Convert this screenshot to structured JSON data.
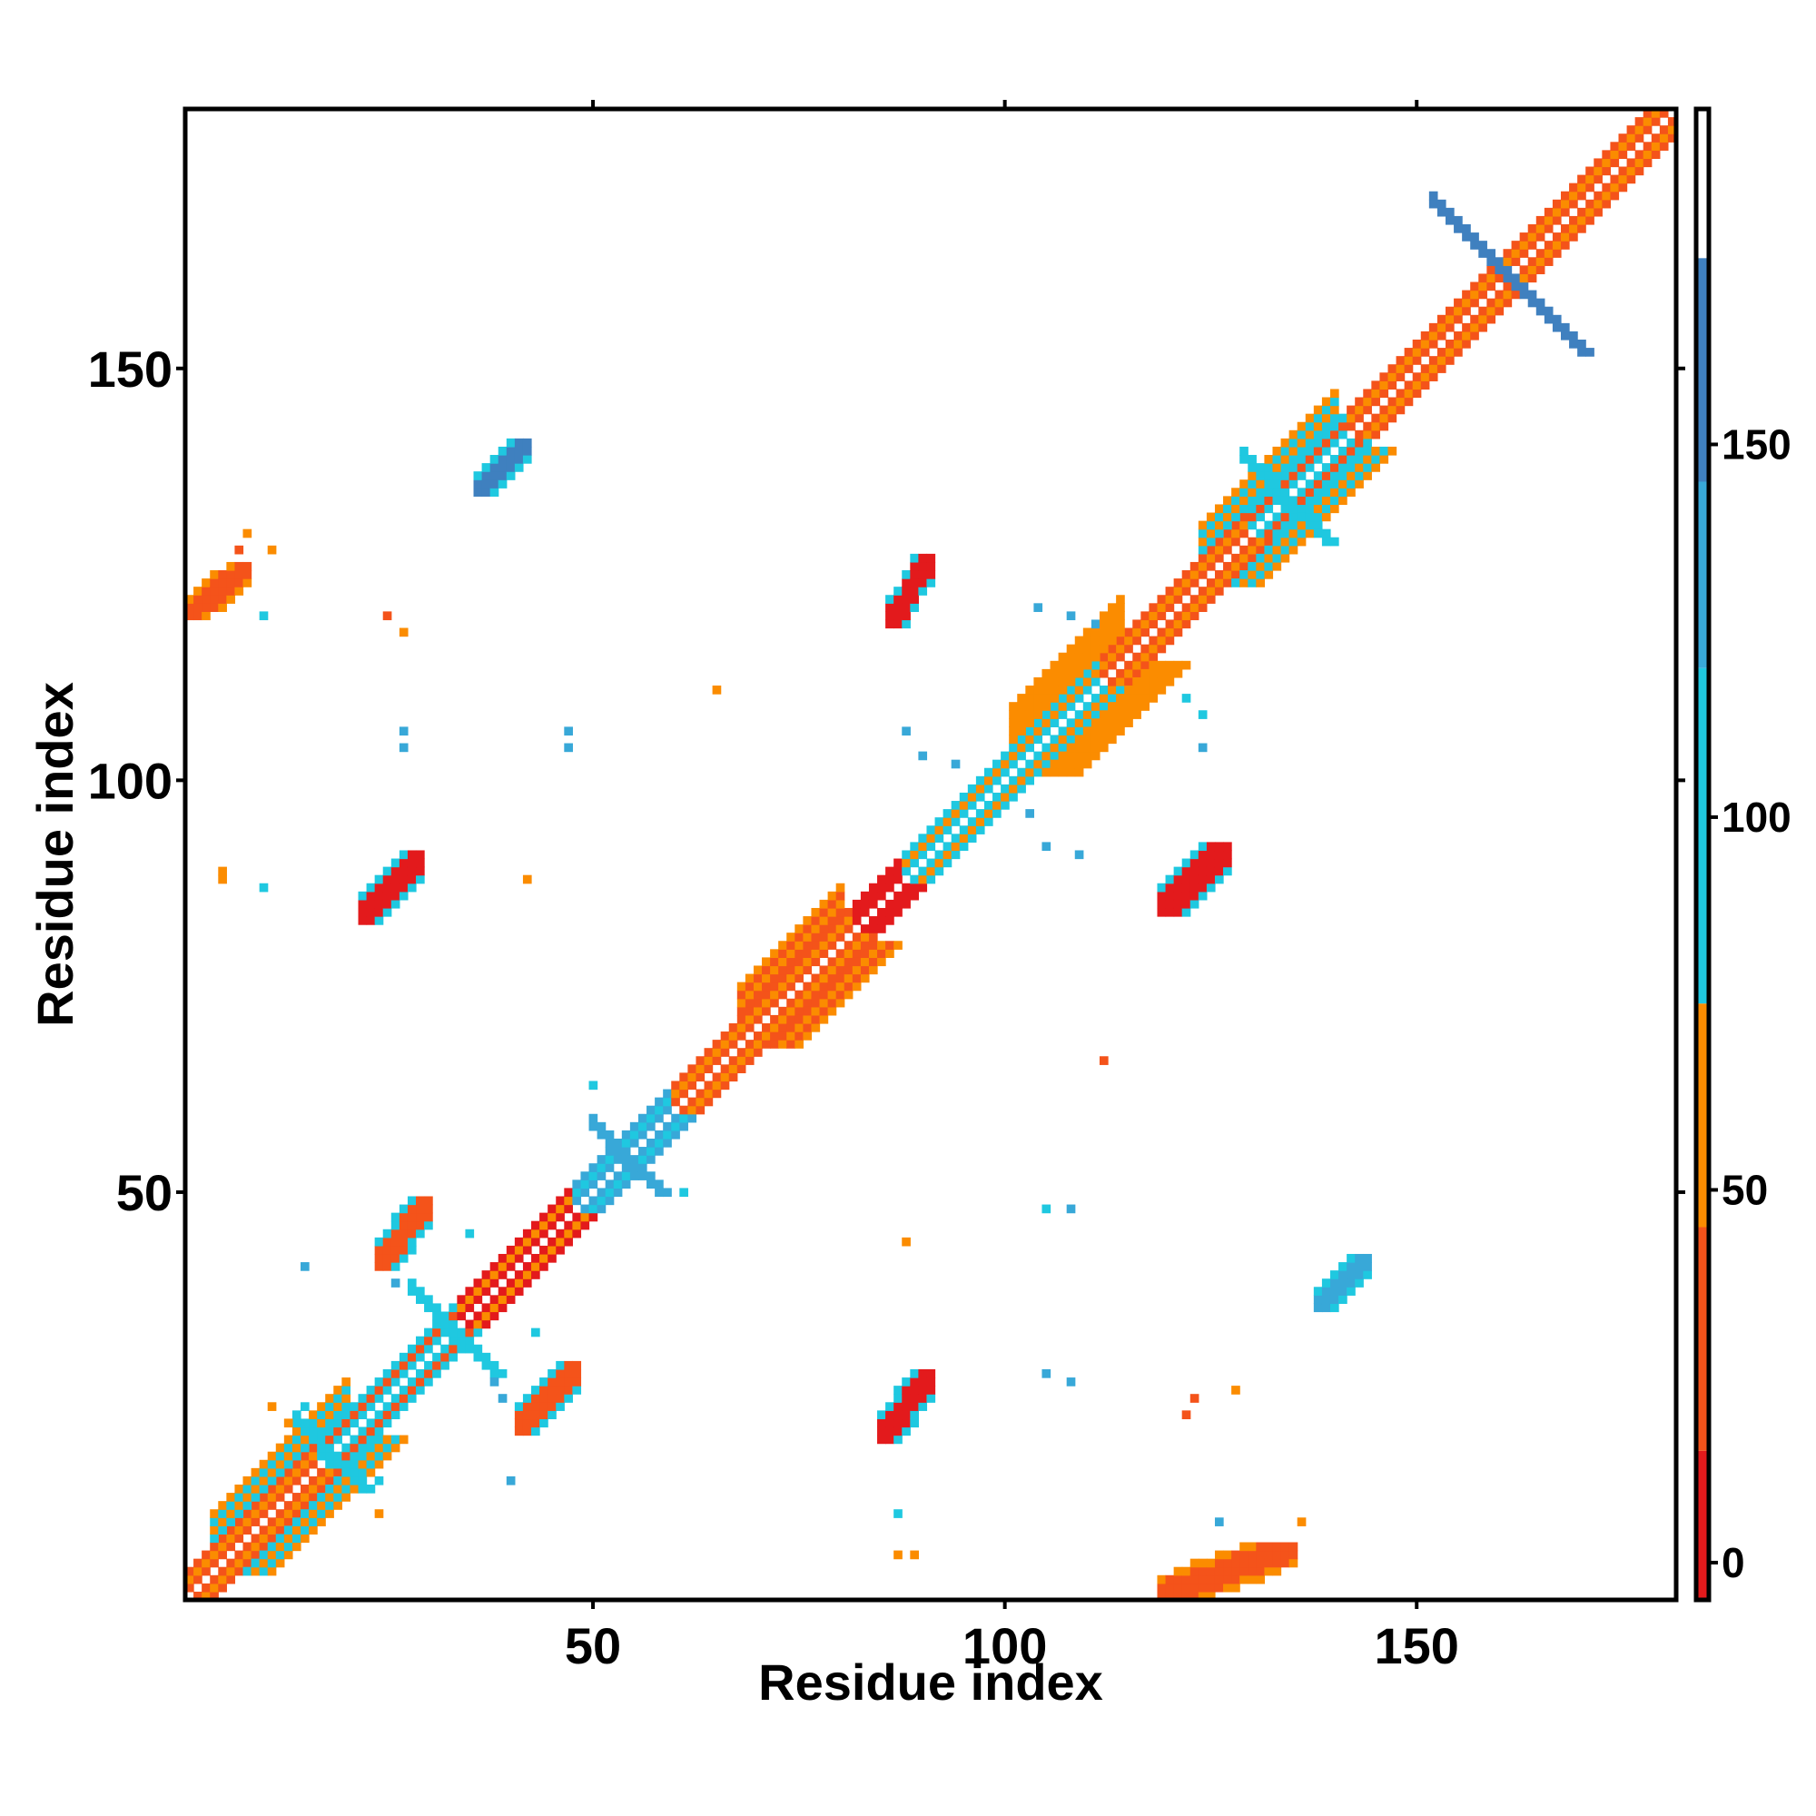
{
  "chart_data": {
    "type": "heatmap",
    "title": "",
    "xlabel": "Residue index",
    "ylabel": "Residue index",
    "xlim": [
      1,
      181
    ],
    "ylim": [
      1,
      181
    ],
    "x_ticks": [
      50,
      100,
      150
    ],
    "y_ticks": [
      50,
      100,
      150
    ],
    "x_tick_labels": [
      "50",
      "100",
      "150"
    ],
    "y_tick_labels": [
      "50",
      "100",
      "150"
    ],
    "grid": false,
    "colorbar": {
      "range": [
        -5,
        195
      ],
      "ticks": [
        0,
        50,
        100,
        150
      ],
      "tick_labels": [
        "0",
        "50",
        "100",
        "150"
      ],
      "bands": [
        {
          "from": -5,
          "to": 15,
          "color": "#e31a1c"
        },
        {
          "from": 15,
          "to": 45,
          "color": "#f4531a"
        },
        {
          "from": 45,
          "to": 75,
          "color": "#fb8c00"
        },
        {
          "from": 75,
          "to": 120,
          "color": "#1fc8e0"
        },
        {
          "from": 120,
          "to": 145,
          "color": "#38a8d8"
        },
        {
          "from": 145,
          "to": 175,
          "color": "#3f80bf"
        },
        {
          "from": 175,
          "to": 195,
          "color": "#ffffff"
        }
      ]
    },
    "features": {
      "diagonal_bands": [
        {
          "from": 1,
          "to": 17,
          "side": "#f4531a",
          "inner": "#fb8c00"
        },
        {
          "from": 17,
          "to": 34,
          "side": "#1fc8e0",
          "inner": "#f4531a"
        },
        {
          "from": 34,
          "to": 48,
          "side": "#e31a1c",
          "inner": "#fb8c00"
        },
        {
          "from": 48,
          "to": 60,
          "side": "#38a8d8",
          "inner": "#1fc8e0"
        },
        {
          "from": 60,
          "to": 82,
          "side": "#f4531a",
          "inner": "#fb8c00"
        },
        {
          "from": 82,
          "to": 88,
          "side": "#e31a1c",
          "inner": "#e31a1c"
        },
        {
          "from": 88,
          "to": 112,
          "side": "#1fc8e0",
          "inner": "#fb8c00"
        },
        {
          "from": 112,
          "to": 130,
          "side": "#f4531a",
          "inner": "#fb8c00"
        },
        {
          "from": 130,
          "to": 142,
          "side": "#1fc8e0",
          "inner": "#f4531a"
        },
        {
          "from": 142,
          "to": 181,
          "side": "#f4531a",
          "inner": "#fb8c00"
        }
      ],
      "diagonal_thick_segments": [
        {
          "from": 4,
          "to": 20,
          "width": 4,
          "color": "#1fc8e0"
        },
        {
          "from": 68,
          "to": 80,
          "width": 4,
          "color": "#f4531a"
        },
        {
          "from": 101,
          "to": 114,
          "width": 5,
          "color": "#fb8c00"
        },
        {
          "from": 124,
          "to": 140,
          "width": 4,
          "color": "#1fc8e0"
        }
      ],
      "cross_patterns": [
        {
          "center": [
            161,
            161
          ],
          "half_length": 9,
          "width": 2,
          "color": "#3f80bf"
        },
        {
          "center": [
            33,
            33
          ],
          "half_length": 5,
          "width": 2,
          "color": "#1fc8e0"
        },
        {
          "center": [
            54,
            54
          ],
          "half_length": 4,
          "width": 2,
          "color": "#38a8d8"
        },
        {
          "center": [
            134,
            134
          ],
          "half_length": 5,
          "width": 2,
          "color": "#1fc8e0"
        },
        {
          "center": [
            18,
            18
          ],
          "half_length": 4,
          "width": 2,
          "color": "#1fc8e0"
        }
      ],
      "off_diagonal_patches": [
        {
          "x": [
            86,
            91
          ],
          "y": [
            119,
            127
          ],
          "color": "#e31a1c",
          "edge": "#1fc8e0"
        },
        {
          "x": [
            22,
            29
          ],
          "y": [
            83,
            91
          ],
          "color": "#e31a1c",
          "edge": "#1fc8e0"
        },
        {
          "x": [
            119,
            127
          ],
          "y": [
            84,
            92
          ],
          "color": "#e31a1c",
          "edge": "#1fc8e0"
        },
        {
          "x": [
            85,
            91
          ],
          "y": [
            20,
            28
          ],
          "color": "#e31a1c",
          "edge": "#1fc8e0"
        },
        {
          "x": [
            41,
            48
          ],
          "y": [
            21,
            29
          ],
          "color": "#f4531a",
          "edge": "#1fc8e0"
        },
        {
          "x": [
            24,
            30
          ],
          "y": [
            41,
            49
          ],
          "color": "#f4531a",
          "edge": "#1fc8e0"
        },
        {
          "x": [
            1,
            8
          ],
          "y": [
            120,
            126
          ],
          "color": "#f4531a",
          "edge": "#fb8c00"
        },
        {
          "x": [
            36,
            42
          ],
          "y": [
            135,
            141
          ],
          "color": "#3f80bf",
          "edge": "#1fc8e0"
        },
        {
          "x": [
            138,
            144
          ],
          "y": [
            36,
            42
          ],
          "color": "#38a8d8",
          "edge": "#1fc8e0"
        },
        {
          "x": [
            119,
            135
          ],
          "y": [
            1,
            7
          ],
          "color": "#f4531a",
          "edge": "#fb8c00"
        }
      ],
      "scatter_pixels": [
        [
          8,
          130,
          "#fb8c00"
        ],
        [
          7,
          128,
          "#f4531a"
        ],
        [
          11,
          128,
          "#fb8c00"
        ],
        [
          10,
          120,
          "#1fc8e0"
        ],
        [
          27,
          118,
          "#fb8c00"
        ],
        [
          25,
          120,
          "#f4531a"
        ],
        [
          65,
          111,
          "#fb8c00"
        ],
        [
          27,
          106,
          "#38a8d8"
        ],
        [
          27,
          104,
          "#38a8d8"
        ],
        [
          47,
          106,
          "#38a8d8"
        ],
        [
          47,
          104,
          "#38a8d8"
        ],
        [
          88,
          106,
          "#38a8d8"
        ],
        [
          90,
          103,
          "#38a8d8"
        ],
        [
          94,
          102,
          "#38a8d8"
        ],
        [
          104,
          121,
          "#38a8d8"
        ],
        [
          108,
          120,
          "#38a8d8"
        ],
        [
          111,
          119,
          "#38a8d8"
        ],
        [
          124,
          108,
          "#1fc8e0"
        ],
        [
          124,
          104,
          "#38a8d8"
        ],
        [
          122,
          110,
          "#1fc8e0"
        ],
        [
          103,
          96,
          "#38a8d8"
        ],
        [
          105,
          92,
          "#38a8d8"
        ],
        [
          109,
          91,
          "#38a8d8"
        ],
        [
          5,
          89,
          "#fb8c00"
        ],
        [
          5,
          88,
          "#fb8c00"
        ],
        [
          10,
          87,
          "#1fc8e0"
        ],
        [
          42,
          88,
          "#fb8c00"
        ],
        [
          112,
          66,
          "#f4531a"
        ],
        [
          50,
          63,
          "#1fc8e0"
        ],
        [
          61,
          50,
          "#1fc8e0"
        ],
        [
          105,
          48,
          "#1fc8e0"
        ],
        [
          108,
          48,
          "#38a8d8"
        ],
        [
          88,
          44,
          "#fb8c00"
        ],
        [
          15,
          41,
          "#38a8d8"
        ],
        [
          26,
          39,
          "#38a8d8"
        ],
        [
          35,
          45,
          "#1fc8e0"
        ],
        [
          38,
          27,
          "#38a8d8"
        ],
        [
          39,
          25,
          "#38a8d8"
        ],
        [
          43,
          33,
          "#1fc8e0"
        ],
        [
          105,
          28,
          "#38a8d8"
        ],
        [
          108,
          27,
          "#38a8d8"
        ],
        [
          123,
          25,
          "#f4531a"
        ],
        [
          122,
          23,
          "#f4531a"
        ],
        [
          128,
          26,
          "#fb8c00"
        ],
        [
          11,
          24,
          "#fb8c00"
        ],
        [
          15,
          24,
          "#1fc8e0"
        ],
        [
          13,
          22,
          "#fb8c00"
        ],
        [
          21,
          15,
          "#1fc8e0"
        ],
        [
          24,
          15,
          "#1fc8e0"
        ],
        [
          24,
          11,
          "#fb8c00"
        ],
        [
          40,
          15,
          "#38a8d8"
        ],
        [
          87,
          11,
          "#1fc8e0"
        ],
        [
          87,
          6,
          "#fb8c00"
        ],
        [
          89,
          6,
          "#fb8c00"
        ],
        [
          126,
          10,
          "#38a8d8"
        ],
        [
          136,
          10,
          "#fb8c00"
        ]
      ]
    }
  }
}
